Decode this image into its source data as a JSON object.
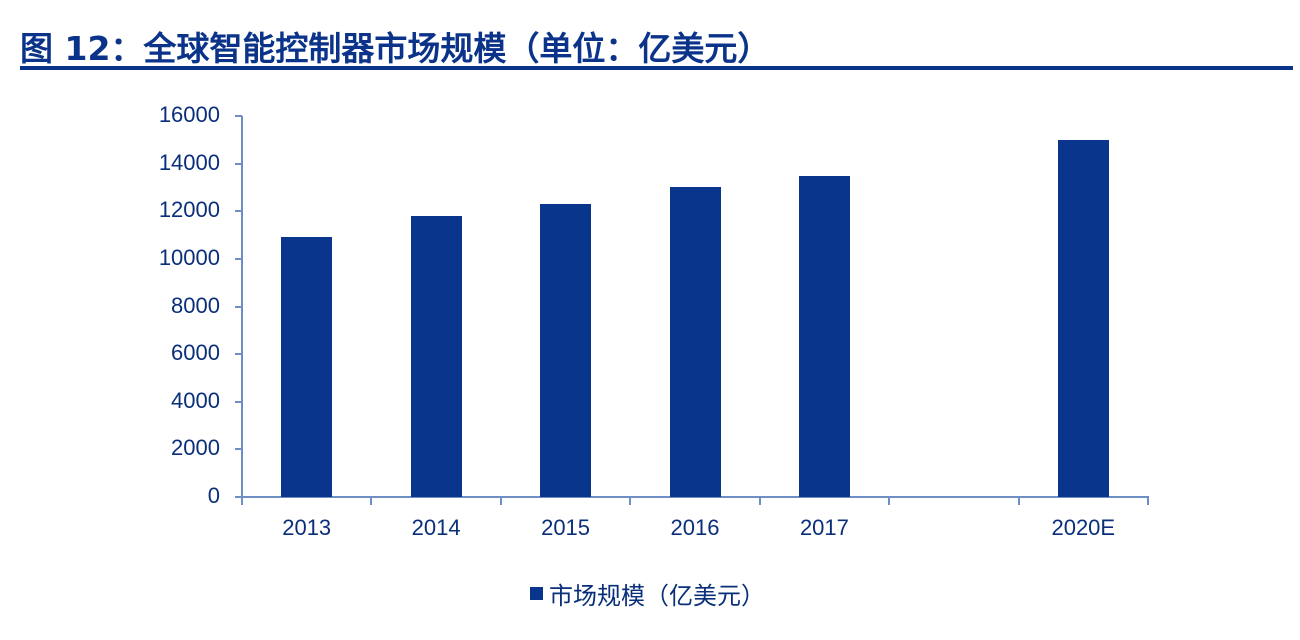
{
  "header": {
    "title": "图 12：全球智能控制器市场规模（单位：亿美元）"
  },
  "legend": {
    "label": "市场规模（亿美元）",
    "color": "#0a358c"
  },
  "chart_data": {
    "type": "bar",
    "title": "图 12：全球智能控制器市场规模（单位：亿美元）",
    "xlabel": "",
    "ylabel": "",
    "categories": [
      "2013",
      "2014",
      "2015",
      "2016",
      "2017",
      "",
      "2020E"
    ],
    "series": [
      {
        "name": "市场规模（亿美元）",
        "color": "#0a358c",
        "values": [
          10900,
          11800,
          12300,
          13000,
          13500,
          null,
          15000
        ]
      }
    ],
    "ylim": [
      0,
      16000
    ],
    "yticks": [
      0,
      2000,
      4000,
      6000,
      8000,
      10000,
      12000,
      14000,
      16000
    ],
    "grid": false,
    "legend_position": "bottom"
  }
}
